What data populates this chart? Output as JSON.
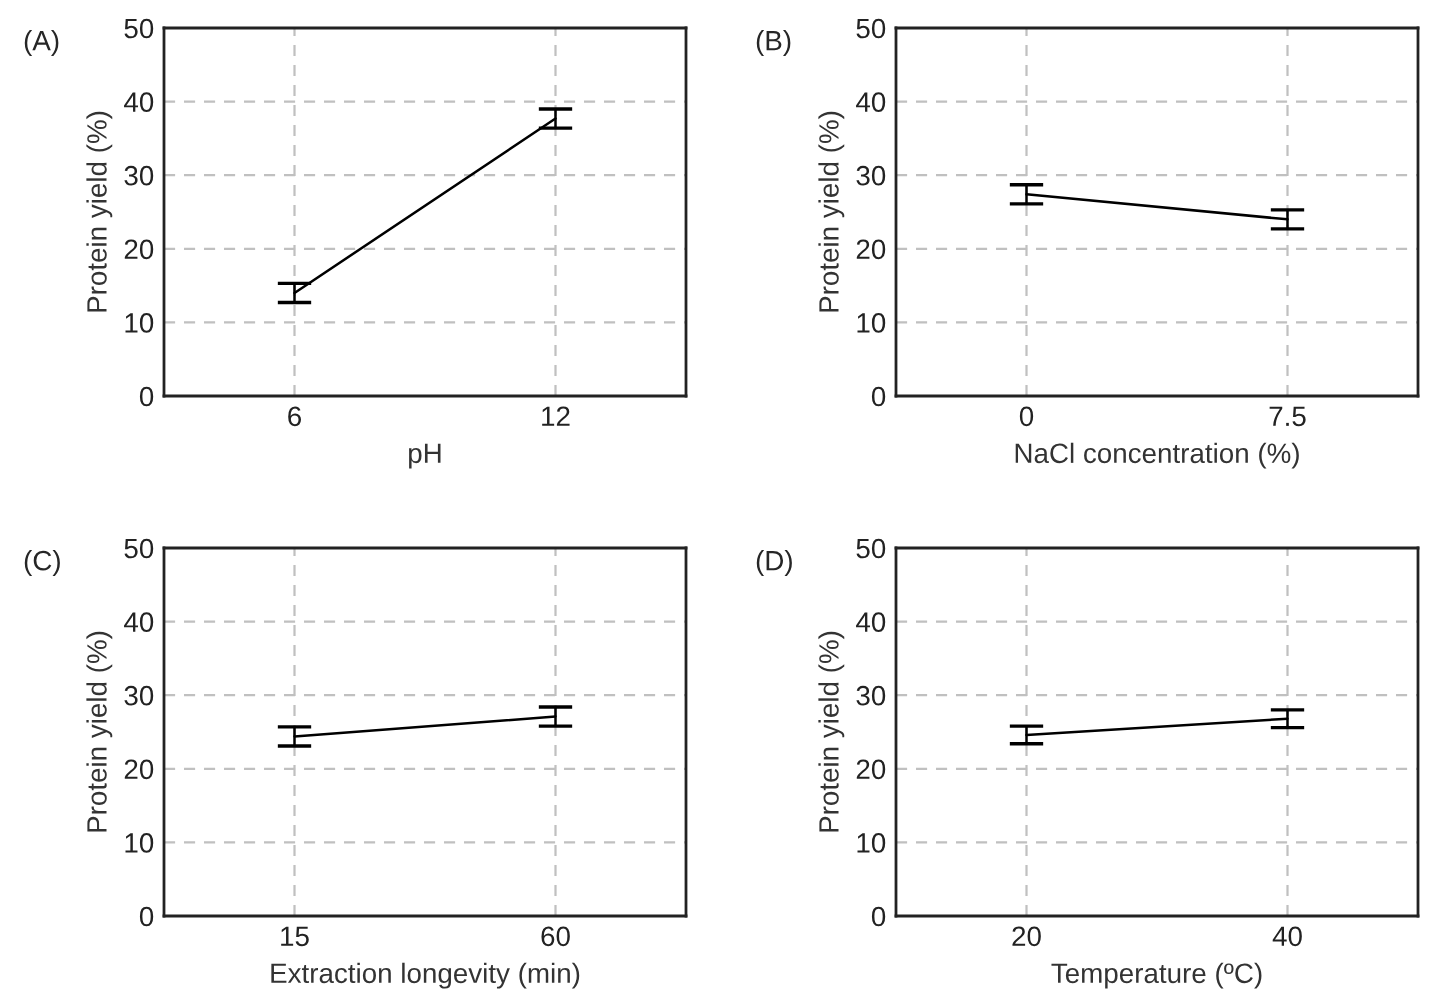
{
  "chart_data": [
    {
      "type": "line",
      "title": "(A)",
      "xlabel": "pH",
      "ylabel": "Protein yield (%)",
      "categories": [
        "6",
        "12"
      ],
      "values": [
        14,
        37.7
      ],
      "errors": [
        1.3,
        1.3
      ],
      "color": "#000000",
      "ylim": [
        0,
        50
      ],
      "yticks": [
        0,
        10,
        20,
        30,
        40,
        50
      ],
      "grid": true,
      "line_style": "solid"
    },
    {
      "type": "line",
      "title": "(B)",
      "xlabel": "NaCl concentration (%)",
      "ylabel": "Protein yield (%)",
      "categories": [
        "0",
        "7.5"
      ],
      "values": [
        27.4,
        24
      ],
      "errors": [
        1.3,
        1.3
      ],
      "color": "#000000",
      "ylim": [
        0,
        50
      ],
      "yticks": [
        0,
        10,
        20,
        30,
        40,
        50
      ],
      "grid": true,
      "line_style": "solid"
    },
    {
      "type": "line",
      "title": "(C)",
      "xlabel": "Extraction longevity (min)",
      "ylabel": "Protein yield (%)",
      "categories": [
        "15",
        "60"
      ],
      "values": [
        24.4,
        27.1
      ],
      "errors": [
        1.3,
        1.3
      ],
      "color": "#000000",
      "ylim": [
        0,
        50
      ],
      "yticks": [
        0,
        10,
        20,
        30,
        40,
        50
      ],
      "grid": true,
      "line_style": "solid"
    },
    {
      "type": "line",
      "title": "(D)",
      "xlabel": "Temperature (ºC)",
      "ylabel": "Protein yield (%)",
      "categories": [
        "20",
        "40"
      ],
      "values": [
        24.6,
        26.8
      ],
      "errors": [
        1.2,
        1.2
      ],
      "color": "#000000",
      "ylim": [
        0,
        50
      ],
      "yticks": [
        0,
        10,
        20,
        30,
        40,
        50
      ],
      "grid": true,
      "line_style": "solid"
    }
  ]
}
